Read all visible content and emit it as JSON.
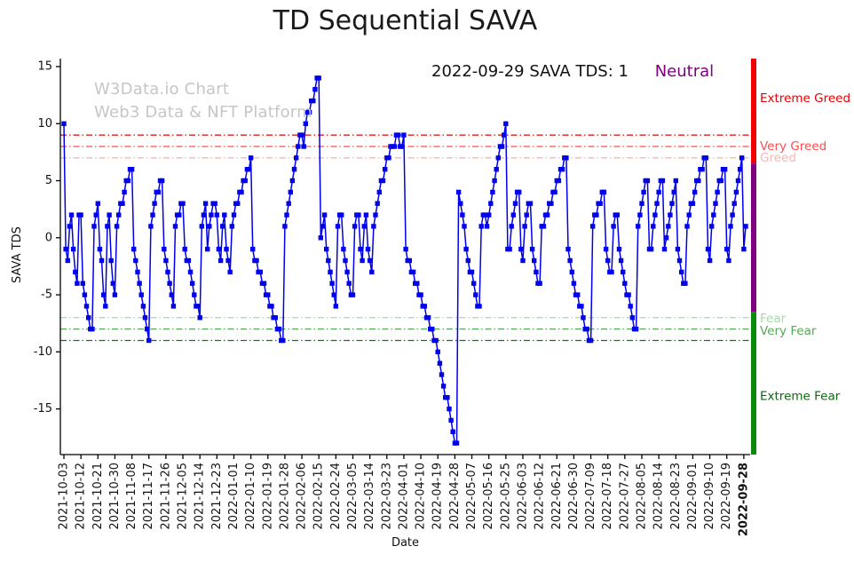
{
  "title": "TD Sequential SAVA",
  "annotation": {
    "text": "2022-09-29 SAVA TDS: 1",
    "status": "Neutral",
    "status_color": "#800080"
  },
  "watermark": {
    "line1": "W3Data.io Chart",
    "line2": "Web3 Data & NFT Platform"
  },
  "chart_data": {
    "type": "line",
    "title": "TD Sequential SAVA",
    "xlabel": "Date",
    "ylabel": "SAVA TDS",
    "ylim": [
      -19.0,
      15.7
    ],
    "yticks": [
      15,
      10,
      5,
      0,
      -5,
      -10,
      -15
    ],
    "grid": false,
    "x_tick_step": 9,
    "x_tick_labels": [
      "2021-10-03",
      "2021-10-12",
      "2021-10-21",
      "2021-10-30",
      "2021-11-08",
      "2021-11-17",
      "2021-11-26",
      "2021-12-05",
      "2021-12-14",
      "2021-12-23",
      "2022-01-01",
      "2022-01-10",
      "2022-01-19",
      "2022-01-28",
      "2022-02-06",
      "2022-02-15",
      "2022-02-24",
      "2022-03-05",
      "2022-03-14",
      "2022-03-23",
      "2022-04-01",
      "2022-04-10",
      "2022-04-19",
      "2022-04-28",
      "2022-05-07",
      "2022-05-16",
      "2022-05-25",
      "2022-06-03",
      "2022-06-12",
      "2022-06-21",
      "2022-06-30",
      "2022-07-09",
      "2022-07-18",
      "2022-07-27",
      "2022-08-05",
      "2022-08-14",
      "2022-08-23",
      "2022-09-01",
      "2022-09-10",
      "2022-09-19",
      "2022-09-28"
    ],
    "series": [
      {
        "name": "SAVA TDS",
        "color": "#0000ee",
        "marker": "square",
        "values": [
          10,
          -1,
          -2,
          1,
          2,
          -1,
          -3,
          -4,
          2,
          2,
          -4,
          -5,
          -6,
          -7,
          -8,
          -8,
          1,
          2,
          3,
          -1,
          -2,
          -5,
          -6,
          1,
          2,
          -2,
          -4,
          -5,
          1,
          2,
          3,
          3,
          4,
          5,
          5,
          6,
          6,
          -1,
          -2,
          -3,
          -4,
          -5,
          -6,
          -7,
          -8,
          -9,
          1,
          2,
          3,
          4,
          4,
          5,
          5,
          -1,
          -2,
          -3,
          -4,
          -5,
          -6,
          1,
          2,
          2,
          3,
          3,
          -1,
          -2,
          -2,
          -3,
          -4,
          -5,
          -6,
          -6,
          -7,
          1,
          2,
          3,
          -1,
          1,
          2,
          3,
          3,
          2,
          -1,
          -2,
          1,
          2,
          -1,
          -2,
          -3,
          1,
          2,
          3,
          3,
          4,
          4,
          5,
          5,
          6,
          6,
          7,
          -1,
          -2,
          -2,
          -3,
          -3,
          -4,
          -4,
          -5,
          -5,
          -6,
          -6,
          -7,
          -7,
          -8,
          -8,
          -9,
          -9,
          1,
          2,
          3,
          4,
          5,
          6,
          7,
          8,
          9,
          9,
          8,
          10,
          11,
          11,
          12,
          12,
          13,
          14,
          14,
          0,
          1,
          2,
          -1,
          -2,
          -3,
          -4,
          -5,
          -6,
          1,
          2,
          2,
          -1,
          -2,
          -3,
          -4,
          -5,
          -5,
          1,
          2,
          2,
          -1,
          -2,
          1,
          2,
          -1,
          -2,
          -3,
          1,
          2,
          3,
          4,
          5,
          5,
          6,
          7,
          7,
          8,
          8,
          8,
          9,
          9,
          8,
          8,
          9,
          -1,
          -2,
          -2,
          -3,
          -3,
          -4,
          -4,
          -5,
          -5,
          -6,
          -6,
          -7,
          -7,
          -8,
          -8,
          -9,
          -9,
          -10,
          -11,
          -12,
          -13,
          -14,
          -14,
          -15,
          -16,
          -17,
          -18,
          -18,
          4,
          3,
          2,
          1,
          -1,
          -2,
          -3,
          -3,
          -4,
          -5,
          -6,
          -6,
          1,
          2,
          2,
          1,
          2,
          3,
          4,
          5,
          6,
          7,
          8,
          8,
          9,
          10,
          -1,
          -1,
          1,
          2,
          3,
          4,
          4,
          -1,
          -2,
          1,
          2,
          3,
          3,
          -1,
          -2,
          -3,
          -4,
          -4,
          1,
          1,
          2,
          2,
          3,
          3,
          4,
          4,
          5,
          5,
          6,
          6,
          7,
          7,
          -1,
          -2,
          -3,
          -4,
          -5,
          -5,
          -6,
          -6,
          -7,
          -8,
          -8,
          -9,
          -9,
          1,
          2,
          2,
          3,
          3,
          4,
          4,
          -1,
          -2,
          -3,
          -3,
          1,
          2,
          2,
          -1,
          -2,
          -3,
          -4,
          -5,
          -5,
          -6,
          -7,
          -8,
          -8,
          1,
          2,
          3,
          4,
          5,
          5,
          -1,
          -1,
          1,
          2,
          3,
          4,
          5,
          5,
          -1,
          0,
          1,
          2,
          3,
          4,
          5,
          -1,
          -2,
          -3,
          -4,
          -4,
          1,
          2,
          3,
          3,
          4,
          5,
          5,
          6,
          6,
          7,
          7,
          -1,
          -2,
          1,
          2,
          3,
          4,
          5,
          5,
          6,
          6,
          -1,
          -2,
          1,
          2,
          3,
          4,
          5,
          6,
          7,
          -1,
          1
        ]
      }
    ],
    "thresholds": [
      {
        "value": 9,
        "color": "#e60000",
        "style": "dashdot"
      },
      {
        "value": 8,
        "color": "#ff4d4d",
        "style": "dashdot"
      },
      {
        "value": 7,
        "color": "#ffb3b3",
        "style": "dashdot"
      },
      {
        "value": -7,
        "color": "#a8d8a8",
        "style": "dashdot"
      },
      {
        "value": -8,
        "color": "#55aa55",
        "style": "dashdot"
      },
      {
        "value": -9,
        "color": "#0f7a0f",
        "style": "dashdot"
      }
    ],
    "right_bar": {
      "segments": [
        {
          "from": 15.7,
          "to": 6.5,
          "color": "#f50000"
        },
        {
          "from": 6.5,
          "to": -6.5,
          "color": "#800080"
        },
        {
          "from": -6.5,
          "to": -19.0,
          "color": "#0a8a0a"
        }
      ]
    },
    "right_labels": [
      {
        "text": "Extreme Greed",
        "value": 12.2,
        "color": "#e60000"
      },
      {
        "text": "Very Greed",
        "value": 8.0,
        "color": "#ff4d4d"
      },
      {
        "text": "Greed",
        "value": 7.0,
        "color": "#ffb3b3"
      },
      {
        "text": "Fear",
        "value": -7.1,
        "color": "#a8d8a8"
      },
      {
        "text": "Very Fear",
        "value": -8.2,
        "color": "#55aa55"
      },
      {
        "text": "Extreme Fear",
        "value": -13.9,
        "color": "#0b6b0b"
      }
    ],
    "legend": "none"
  }
}
